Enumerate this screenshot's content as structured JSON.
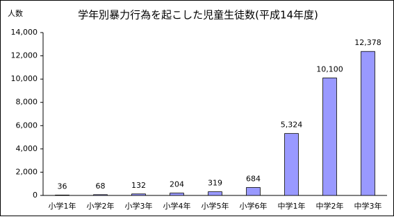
{
  "chart_data": {
    "type": "bar",
    "title": "学年別暴力行為を起こした児童生徒数(平成14年度)",
    "y_label": "人数",
    "categories": [
      "小学1年",
      "小学2年",
      "小学3年",
      "小学4年",
      "小学5年",
      "小学6年",
      "中学1年",
      "中学2年",
      "中学3年"
    ],
    "values": [
      36,
      68,
      132,
      204,
      319,
      684,
      5324,
      10100,
      12378
    ],
    "value_labels": [
      "36",
      "68",
      "132",
      "204",
      "319",
      "684",
      "5,324",
      "10,100",
      "12,378"
    ],
    "color": "#9999ff",
    "ylim": [
      0,
      14000
    ],
    "yticks": [
      0,
      {
        "value": 2000,
        "label": "2,000"
      },
      {
        "value": 4000,
        "label": "4,000"
      },
      {
        "value": 6000,
        "label": "6,000"
      },
      {
        "value": 8000,
        "label": "8,000"
      },
      {
        "value": 10000,
        "label": "10,000"
      },
      {
        "value": 12000,
        "label": "12,000"
      },
      {
        "value": 14000,
        "label": "14,000"
      }
    ],
    "grid": false
  }
}
